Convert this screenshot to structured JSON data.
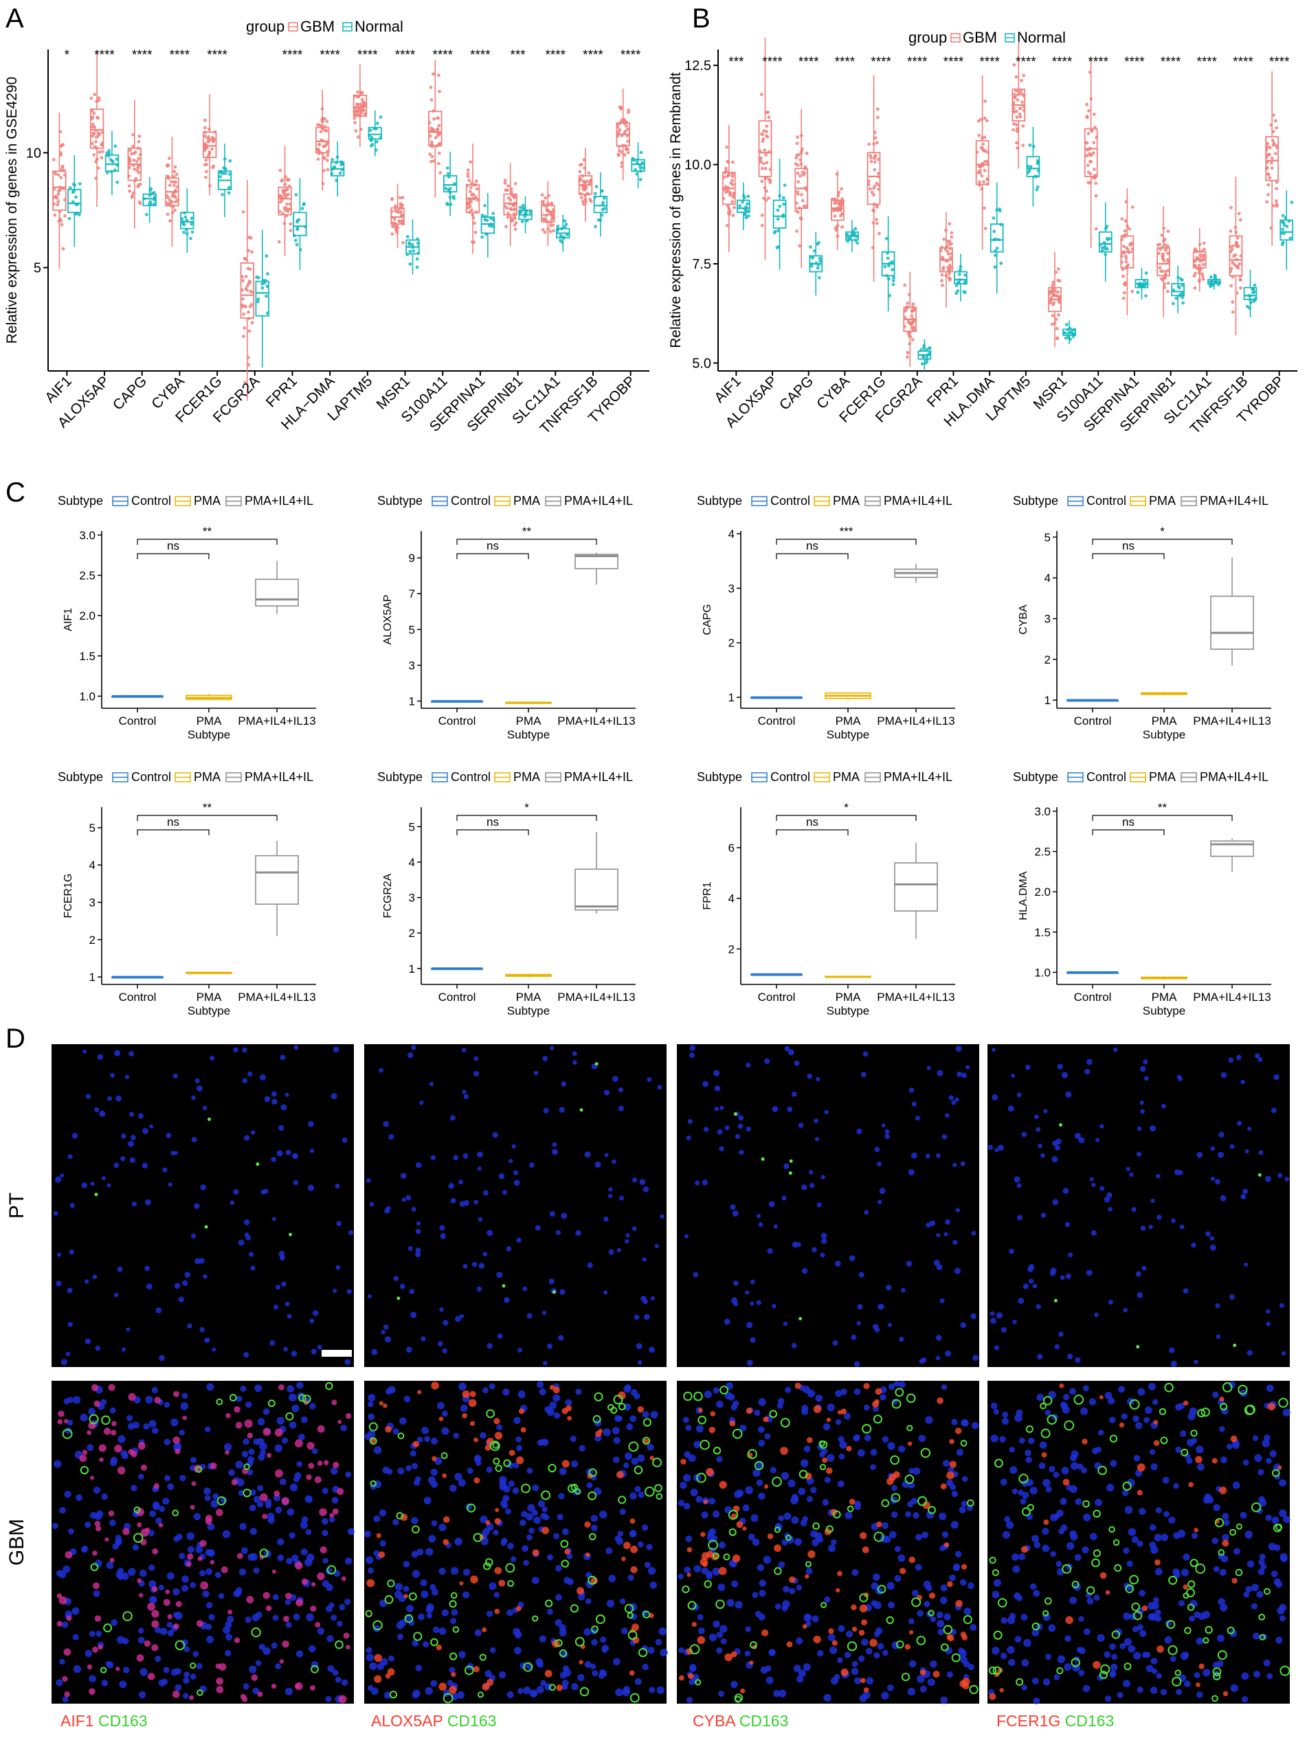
{
  "colors": {
    "gbm": "#f07f7a",
    "normal": "#14b8be",
    "control": "#2b7bd1",
    "pma": "#e8b400",
    "pma_il": "#8c8c8c",
    "marker_red": "#ff3b2f",
    "marker_green": "#35d12b"
  },
  "chart_data": [
    {
      "panel": "A",
      "type": "box",
      "legend_title": "group",
      "legend": [
        "GBM",
        "Normal"
      ],
      "legend_position": "top",
      "ylabel": "Relative expression of genes in GSE4290",
      "ylim": [
        0.5,
        14.5
      ],
      "yticks": [
        5,
        10
      ],
      "categories": [
        "AIF1",
        "ALOX5AP",
        "CAPG",
        "CYBA",
        "FCER1G",
        "FCGR2A",
        "FPR1",
        "HLA−DMA",
        "LAPTM5",
        "MSR1",
        "S100A11",
        "SERPINA1",
        "SERPINB1",
        "SLC11A1",
        "TNFRSF1B",
        "TYROBP"
      ],
      "significance": [
        "*",
        "****",
        "****",
        "****",
        "****",
        "",
        "****",
        "****",
        "****",
        "****",
        "****",
        "****",
        "***",
        "****",
        "****",
        "****"
      ],
      "series": [
        {
          "name": "GBM",
          "box": [
            [
              7.5,
              8.5,
              9.2
            ],
            [
              10.2,
              11.0,
              11.9
            ],
            [
              8.8,
              9.5,
              10.2
            ],
            [
              7.7,
              8.3,
              8.9
            ],
            [
              9.8,
              10.3,
              10.9
            ],
            [
              2.8,
              3.8,
              5.2
            ],
            [
              7.3,
              8.0,
              8.5
            ],
            [
              10.0,
              10.5,
              11.1
            ],
            [
              11.6,
              12.0,
              12.5
            ],
            [
              6.9,
              7.2,
              7.6
            ],
            [
              10.3,
              10.9,
              11.8
            ],
            [
              7.4,
              8.0,
              8.6
            ],
            [
              7.3,
              7.8,
              8.2
            ],
            [
              7.0,
              7.3,
              7.7
            ],
            [
              8.2,
              8.6,
              9.0
            ],
            [
              10.3,
              10.8,
              11.3
            ]
          ]
        },
        {
          "name": "Normal",
          "box": [
            [
              7.4,
              7.8,
              8.4
            ],
            [
              9.2,
              9.5,
              9.9
            ],
            [
              7.7,
              8.0,
              8.2
            ],
            [
              6.7,
              7.0,
              7.4
            ],
            [
              8.4,
              8.8,
              9.2
            ],
            [
              2.9,
              3.9,
              4.4
            ],
            [
              6.4,
              6.8,
              7.4
            ],
            [
              9.0,
              9.3,
              9.6
            ],
            [
              10.6,
              10.8,
              11.1
            ],
            [
              5.6,
              5.9,
              6.2
            ],
            [
              8.3,
              8.6,
              9.0
            ],
            [
              6.5,
              6.9,
              7.2
            ],
            [
              7.1,
              7.3,
              7.5
            ],
            [
              6.3,
              6.5,
              6.7
            ],
            [
              7.4,
              7.7,
              8.1
            ],
            [
              9.2,
              9.5,
              9.7
            ]
          ]
        }
      ]
    },
    {
      "panel": "B",
      "type": "box",
      "legend_title": "group",
      "legend": [
        "GBM",
        "Normal"
      ],
      "legend_position": "top",
      "ylabel": "Relative expression of genes in Rembrandt",
      "ylim": [
        4.8,
        12.9
      ],
      "yticks": [
        5.0,
        7.5,
        10.0,
        12.5
      ],
      "categories": [
        "AIF1",
        "ALOX5AP",
        "CAPG",
        "CYBA",
        "FCER1G",
        "FCGR2A",
        "FPR1",
        "HLA.DMA",
        "LAPTM5",
        "MSR1",
        "S100A11",
        "SERPINA1",
        "SERPINB1",
        "SLC11A1",
        "TNFRSF1B",
        "TYROBP"
      ],
      "significance": [
        "***",
        "****",
        "****",
        "****",
        "****",
        "****",
        "****",
        "****",
        "****",
        "****",
        "****",
        "****",
        "****",
        "****",
        "****",
        "****"
      ],
      "series": [
        {
          "name": "GBM",
          "box": [
            [
              9.0,
              9.4,
              9.8
            ],
            [
              9.7,
              10.3,
              11.1
            ],
            [
              8.9,
              9.4,
              9.9
            ],
            [
              8.6,
              8.9,
              9.1
            ],
            [
              9.0,
              9.7,
              10.3
            ],
            [
              5.8,
              6.1,
              6.4
            ],
            [
              7.3,
              7.6,
              7.9
            ],
            [
              9.5,
              10.0,
              10.6
            ],
            [
              11.1,
              11.5,
              11.9
            ],
            [
              6.3,
              6.6,
              6.9
            ],
            [
              9.7,
              10.4,
              10.9
            ],
            [
              7.4,
              7.8,
              8.2
            ],
            [
              7.2,
              7.5,
              7.9
            ],
            [
              7.4,
              7.6,
              7.8
            ],
            [
              7.2,
              7.6,
              8.2
            ],
            [
              9.6,
              10.1,
              10.7
            ]
          ]
        },
        {
          "name": "Normal",
          "box": [
            [
              8.8,
              8.9,
              9.1
            ],
            [
              8.4,
              8.7,
              9.1
            ],
            [
              7.3,
              7.5,
              7.7
            ],
            [
              8.1,
              8.2,
              8.3
            ],
            [
              7.2,
              7.5,
              7.8
            ],
            [
              5.1,
              5.2,
              5.3
            ],
            [
              7.0,
              7.1,
              7.3
            ],
            [
              7.8,
              8.1,
              8.5
            ],
            [
              9.7,
              9.9,
              10.2
            ],
            [
              5.7,
              5.75,
              5.85
            ],
            [
              7.8,
              8.0,
              8.3
            ],
            [
              6.9,
              7.0,
              7.1
            ],
            [
              6.7,
              6.8,
              7.0
            ],
            [
              7.0,
              7.05,
              7.1
            ],
            [
              6.6,
              6.7,
              6.9
            ],
            [
              8.1,
              8.3,
              8.6
            ]
          ]
        }
      ]
    },
    {
      "panel": "C",
      "type": "box",
      "legend_title": "Subtype",
      "legend": [
        "Control",
        "PMA",
        "PMA+IL4+IL13"
      ],
      "legend_labels_visible": [
        "Control",
        "PMA",
        "PMA+IL4+IL"
      ],
      "xlabel": "Subtype",
      "categories": [
        "Control",
        "PMA",
        "PMA+IL4+IL13"
      ],
      "plots": [
        {
          "ylabel": "AIF1",
          "yticks": [
            1.0,
            1.5,
            2.0,
            2.5,
            3.0
          ],
          "ylim": [
            0.85,
            3.05
          ],
          "boxes": [
            [
              1.0,
              1.0,
              1.0,
              1.0,
              1.0
            ],
            [
              0.95,
              0.96,
              0.98,
              1.01,
              1.03
            ],
            [
              2.02,
              2.12,
              2.2,
              2.45,
              2.68
            ]
          ],
          "comparisons": [
            {
              "pair": "Control-PMA",
              "label": "ns"
            },
            {
              "pair": "Control-PMA+IL4+IL13",
              "label": "**"
            }
          ]
        },
        {
          "ylabel": "ALOX5AP",
          "yticks": [
            1,
            3,
            5,
            7,
            9
          ],
          "ylim": [
            0.6,
            10.5
          ],
          "boxes": [
            [
              1.0,
              1.0,
              1.0,
              1.0,
              1.0
            ],
            [
              0.88,
              0.9,
              0.91,
              0.93,
              0.94
            ],
            [
              7.5,
              8.4,
              9.1,
              9.2,
              9.3
            ]
          ],
          "comparisons": [
            {
              "pair": "Control-PMA",
              "label": "ns"
            },
            {
              "pair": "Control-PMA+IL4+IL13",
              "label": "**"
            }
          ]
        },
        {
          "ylabel": "CAPG",
          "yticks": [
            1,
            2,
            3,
            4
          ],
          "ylim": [
            0.8,
            4.05
          ],
          "boxes": [
            [
              1.0,
              1.0,
              1.0,
              1.0,
              1.0
            ],
            [
              0.95,
              0.98,
              1.03,
              1.08,
              1.1
            ],
            [
              3.1,
              3.2,
              3.28,
              3.35,
              3.45
            ]
          ],
          "comparisons": [
            {
              "pair": "Control-PMA",
              "label": "ns"
            },
            {
              "pair": "Control-PMA+IL4+IL13",
              "label": "***"
            }
          ]
        },
        {
          "ylabel": "CYBA",
          "yticks": [
            1,
            2,
            3,
            4,
            5
          ],
          "ylim": [
            0.8,
            5.15
          ],
          "boxes": [
            [
              1.0,
              1.0,
              1.0,
              1.0,
              1.0
            ],
            [
              1.12,
              1.14,
              1.16,
              1.18,
              1.2
            ],
            [
              1.85,
              2.25,
              2.65,
              3.55,
              4.5
            ]
          ],
          "comparisons": [
            {
              "pair": "Control-PMA",
              "label": "ns"
            },
            {
              "pair": "Control-PMA+IL4+IL13",
              "label": "*"
            }
          ]
        },
        {
          "ylabel": "FCER1G",
          "yticks": [
            1,
            2,
            3,
            4,
            5
          ],
          "ylim": [
            0.8,
            5.55
          ],
          "boxes": [
            [
              1.0,
              1.0,
              1.0,
              1.0,
              1.0
            ],
            [
              1.09,
              1.1,
              1.11,
              1.12,
              1.13
            ],
            [
              2.1,
              2.95,
              3.8,
              4.25,
              4.65
            ]
          ],
          "comparisons": [
            {
              "pair": "Control-PMA",
              "label": "ns"
            },
            {
              "pair": "Control-PMA+IL4+IL13",
              "label": "**"
            }
          ]
        },
        {
          "ylabel": "FCGR2A",
          "yticks": [
            1,
            2,
            3,
            4,
            5
          ],
          "ylim": [
            0.55,
            5.55
          ],
          "boxes": [
            [
              1.0,
              1.0,
              1.0,
              1.0,
              1.0
            ],
            [
              0.75,
              0.78,
              0.8,
              0.83,
              0.86
            ],
            [
              2.55,
              2.65,
              2.75,
              3.8,
              4.85
            ]
          ],
          "comparisons": [
            {
              "pair": "Control-PMA",
              "label": "ns"
            },
            {
              "pair": "Control-PMA+IL4+IL13",
              "label": "*"
            }
          ]
        },
        {
          "ylabel": "FPR1",
          "yticks": [
            2,
            4,
            6
          ],
          "ylim": [
            0.6,
            7.6
          ],
          "boxes": [
            [
              1.0,
              1.0,
              1.0,
              1.0,
              1.0
            ],
            [
              0.86,
              0.88,
              0.9,
              0.92,
              0.94
            ],
            [
              2.4,
              3.5,
              4.55,
              5.4,
              6.2
            ]
          ],
          "comparisons": [
            {
              "pair": "Control-PMA",
              "label": "ns"
            },
            {
              "pair": "Control-PMA+IL4+IL13",
              "label": "*"
            }
          ]
        },
        {
          "ylabel": "HLA.DMA",
          "yticks": [
            1.0,
            1.5,
            2.0,
            2.5,
            3.0
          ],
          "ylim": [
            0.85,
            3.05
          ],
          "boxes": [
            [
              1.0,
              1.0,
              1.0,
              1.0,
              1.0
            ],
            [
              0.91,
              0.92,
              0.93,
              0.94,
              0.95
            ],
            [
              2.25,
              2.44,
              2.59,
              2.63,
              2.66
            ]
          ],
          "comparisons": [
            {
              "pair": "Control-PMA",
              "label": "ns"
            },
            {
              "pair": "Control-PMA+IL4+IL13",
              "label": "**"
            }
          ]
        }
      ]
    }
  ],
  "panel_labels": [
    "A",
    "B",
    "C",
    "D"
  ],
  "panel_d": {
    "row_labels": [
      "PT",
      "GBM"
    ],
    "captions": [
      {
        "marker": "AIF1",
        "counter": "CD163"
      },
      {
        "marker": "ALOX5AP",
        "counter": "CD163"
      },
      {
        "marker": "CYBA",
        "counter": "CD163"
      },
      {
        "marker": "FCER1G",
        "counter": "CD163"
      }
    ]
  }
}
